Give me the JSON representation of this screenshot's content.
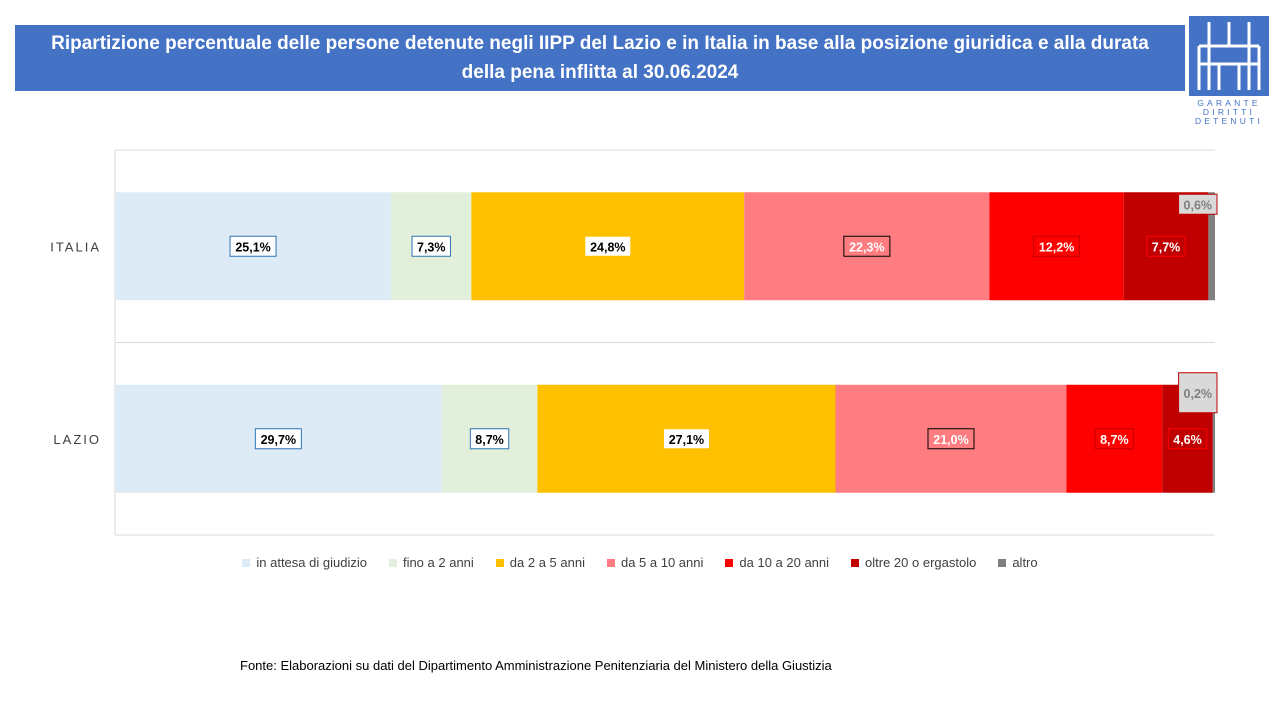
{
  "title": "Ripartizione percentuale delle persone detenute negli IIPP del Lazio e in Italia in base alla posizione giuridica e alla durata della pena inflitta al 30.06.2024",
  "logo": {
    "lines": [
      "GARANTE",
      "DIRITTI",
      "DETENUTI"
    ]
  },
  "source": "Fonte:  Elaborazioni su dati del Dipartimento  Amministrazione  Penitenziaria del Ministero della Giustizia",
  "chart_data": {
    "type": "bar",
    "orientation": "horizontal",
    "stacked": "percent",
    "categories": [
      "ITALIA",
      "LAZIO"
    ],
    "series": [
      {
        "name": "in attesa di giudizio",
        "color": "#DDEBF7",
        "values": [
          25.1,
          29.7
        ],
        "labels": [
          "25,1%",
          "29,7%"
        ]
      },
      {
        "name": "fino a 2 anni",
        "color": "#E2EFDA",
        "values": [
          7.3,
          8.7
        ],
        "labels": [
          "7,3%",
          "8,7%"
        ]
      },
      {
        "name": "da 2 a 5 anni",
        "color": "#FFC000",
        "values": [
          24.8,
          27.1
        ],
        "labels": [
          "24,8%",
          "27,1%"
        ]
      },
      {
        "name": "da 5 a 10 anni",
        "color": "#FF7C80",
        "values": [
          22.3,
          21.0
        ],
        "labels": [
          "22,3%",
          "21,0%"
        ]
      },
      {
        "name": "da 10 a 20 anni",
        "color": "#FF0000",
        "values": [
          12.2,
          8.7
        ],
        "labels": [
          "12,2%",
          "8,7%"
        ]
      },
      {
        "name": "oltre 20 o ergastolo",
        "color": "#C00000",
        "values": [
          7.7,
          4.6
        ],
        "labels": [
          "7,7%",
          "4,6%"
        ]
      },
      {
        "name": "altro",
        "color": "#808080",
        "values": [
          0.6,
          0.2
        ],
        "labels": [
          "0,6%",
          "0,2%"
        ]
      }
    ],
    "legend_position": "bottom",
    "grid": false
  }
}
